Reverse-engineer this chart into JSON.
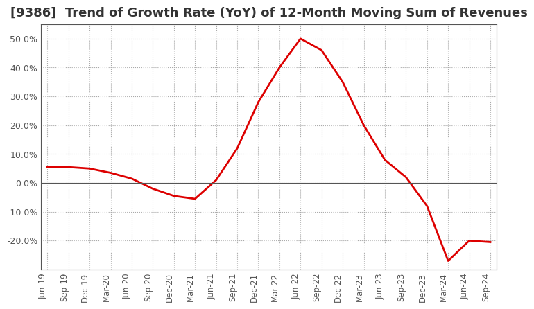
{
  "title": "[9386]  Trend of Growth Rate (YoY) of 12-Month Moving Sum of Revenues",
  "title_fontsize": 13,
  "ylim": [
    -30,
    55
  ],
  "yticks": [
    -20,
    -10,
    0,
    10,
    20,
    30,
    40,
    50
  ],
  "ytick_labels": [
    "-20.0%",
    "-10.0%",
    "0.0%",
    "10.0%",
    "20.0%",
    "30.0%",
    "40.0%",
    "50.0%"
  ],
  "plot_bg_color": "#FFFFFF",
  "fig_bg_color": "#FFFFFF",
  "line_color": "#DD0000",
  "line_width": 2.0,
  "dates": [
    "Jun-19",
    "Sep-19",
    "Dec-19",
    "Mar-20",
    "Jun-20",
    "Sep-20",
    "Dec-20",
    "Mar-21",
    "Jun-21",
    "Sep-21",
    "Dec-21",
    "Mar-22",
    "Jun-22",
    "Sep-22",
    "Dec-22",
    "Mar-23",
    "Jun-23",
    "Sep-23",
    "Dec-23",
    "Mar-24",
    "Jun-24",
    "Sep-24"
  ],
  "values": [
    5.5,
    5.5,
    5.0,
    3.5,
    1.5,
    -2.0,
    -4.5,
    -5.5,
    1.0,
    12.0,
    28.0,
    40.0,
    50.0,
    46.0,
    35.0,
    20.0,
    8.0,
    2.0,
    -8.0,
    -27.0,
    -20.0,
    -20.5
  ],
  "grid_color": "#AAAAAA",
  "grid_style": ":",
  "grid_linewidth": 0.8,
  "spine_color": "#555555",
  "tick_label_color": "#555555",
  "tick_fontsize": 9,
  "xtick_fontsize": 8.5
}
